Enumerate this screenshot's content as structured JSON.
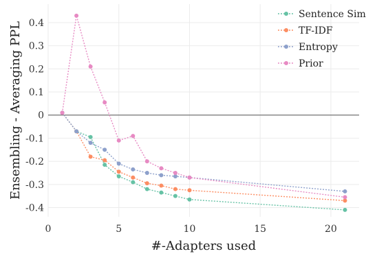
{
  "chart_data": {
    "type": "line",
    "title": "",
    "xlabel": "#-Adapters used",
    "ylabel": "Ensembling - Averaging PPL",
    "xlim": [
      0,
      22
    ],
    "ylim": [
      -0.44,
      0.48
    ],
    "xticks": [
      0,
      5,
      10,
      15,
      20
    ],
    "yticks": [
      -0.4,
      -0.3,
      -0.2,
      -0.1,
      0,
      0.1,
      0.2,
      0.3,
      0.4
    ],
    "ytick_labels": [
      "-0.4",
      "-0.3",
      "-0.2",
      "-0.1",
      "0",
      "0.1",
      "0.2",
      "0.3",
      "0.4"
    ],
    "xtick_labels": [
      "0",
      "5",
      "10",
      "15",
      "20"
    ],
    "grid": true,
    "reference_line_y": 0,
    "legend_position": "top-right",
    "series": [
      {
        "name": "Sentence Sim",
        "color": "#66c2a5",
        "x": [
          1,
          2,
          3,
          4,
          5,
          6,
          7,
          8,
          9,
          10,
          21
        ],
        "y": [
          0.01,
          -0.07,
          -0.095,
          -0.215,
          -0.265,
          -0.29,
          -0.32,
          -0.335,
          -0.35,
          -0.365,
          -0.41
        ]
      },
      {
        "name": "TF-IDF",
        "color": "#fc8d62",
        "x": [
          1,
          2,
          3,
          4,
          5,
          6,
          7,
          8,
          9,
          10,
          21
        ],
        "y": [
          0.01,
          -0.07,
          -0.18,
          -0.195,
          -0.245,
          -0.27,
          -0.295,
          -0.305,
          -0.32,
          -0.325,
          -0.37
        ]
      },
      {
        "name": "Entropy",
        "color": "#8da0cb",
        "x": [
          1,
          2,
          3,
          4,
          5,
          6,
          7,
          8,
          9,
          10,
          21
        ],
        "y": [
          0.01,
          -0.07,
          -0.12,
          -0.15,
          -0.21,
          -0.235,
          -0.25,
          -0.26,
          -0.265,
          -0.27,
          -0.33
        ]
      },
      {
        "name": "Prior",
        "color": "#e78ac3",
        "x": [
          1,
          2,
          3,
          4,
          5,
          6,
          7,
          8,
          9,
          10,
          21
        ],
        "y": [
          0.01,
          0.43,
          0.21,
          0.055,
          -0.11,
          -0.09,
          -0.2,
          -0.23,
          -0.25,
          -0.27,
          -0.355
        ]
      }
    ]
  }
}
